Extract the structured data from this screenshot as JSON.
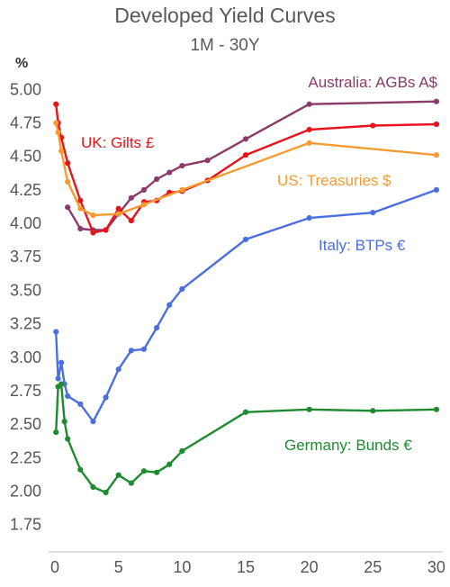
{
  "chart_data": {
    "type": "line",
    "title": "Developed Yield Curves",
    "subtitle": "1M - 30Y",
    "ylabel": "%",
    "xlabel": "",
    "xlim": [
      -0.5,
      30.5
    ],
    "ylim": [
      1.6,
      5.13
    ],
    "xticks": [
      0,
      5,
      10,
      15,
      20,
      25,
      30
    ],
    "yticks": [
      1.75,
      2.0,
      2.25,
      2.5,
      2.75,
      3.0,
      3.25,
      3.5,
      3.75,
      4.0,
      4.25,
      4.5,
      4.75,
      5.0
    ],
    "grid": false,
    "legend": "inline labels",
    "series": [
      {
        "name": "Australia: AGBs A$",
        "color": "#8b3a6a",
        "x": [
          1,
          2,
          3,
          4,
          5,
          6,
          7,
          8,
          9,
          10,
          12,
          15,
          20,
          30
        ],
        "y": [
          4.12,
          3.96,
          3.95,
          3.95,
          4.07,
          4.19,
          4.25,
          4.33,
          4.38,
          4.43,
          4.47,
          4.63,
          4.89,
          4.91
        ]
      },
      {
        "name": "UK: Gilts £",
        "color": "#e8141c",
        "x": [
          0.083,
          0.25,
          0.5,
          1,
          2,
          3,
          4,
          5,
          6,
          7,
          8,
          9,
          10,
          12,
          15,
          20,
          25,
          30
        ],
        "y": [
          4.89,
          4.75,
          4.64,
          4.45,
          4.17,
          3.93,
          3.95,
          4.11,
          4.02,
          4.16,
          4.17,
          4.23,
          4.24,
          4.32,
          4.51,
          4.7,
          4.73,
          4.74
        ]
      },
      {
        "name": "US: Treasuries $",
        "color": "#f59b2f",
        "x": [
          0.083,
          0.25,
          0.5,
          1,
          2,
          3,
          5,
          7,
          10,
          20,
          30
        ],
        "y": [
          4.75,
          4.68,
          4.54,
          4.31,
          4.11,
          4.06,
          4.07,
          4.14,
          4.25,
          4.6,
          4.51
        ]
      },
      {
        "name": "Italy: BTPs €",
        "color": "#4a6fdf",
        "x": [
          0.083,
          0.25,
          0.5,
          0.75,
          1,
          2,
          3,
          4,
          5,
          6,
          7,
          8,
          9,
          10,
          15,
          20,
          25,
          30
        ],
        "y": [
          3.19,
          2.84,
          2.96,
          2.8,
          2.71,
          2.65,
          2.52,
          2.7,
          2.91,
          3.05,
          3.06,
          3.22,
          3.39,
          3.51,
          3.88,
          4.04,
          4.08,
          4.25
        ]
      },
      {
        "name": "Germany: Bunds €",
        "color": "#1e8b2e",
        "x": [
          0.083,
          0.25,
          0.5,
          0.75,
          1,
          2,
          3,
          4,
          5,
          6,
          7,
          8,
          9,
          10,
          15,
          20,
          25,
          30
        ],
        "y": [
          2.44,
          2.78,
          2.8,
          2.52,
          2.39,
          2.16,
          2.03,
          1.99,
          2.12,
          2.06,
          2.15,
          2.14,
          2.2,
          2.3,
          2.59,
          2.61,
          2.6,
          2.61
        ]
      }
    ]
  }
}
